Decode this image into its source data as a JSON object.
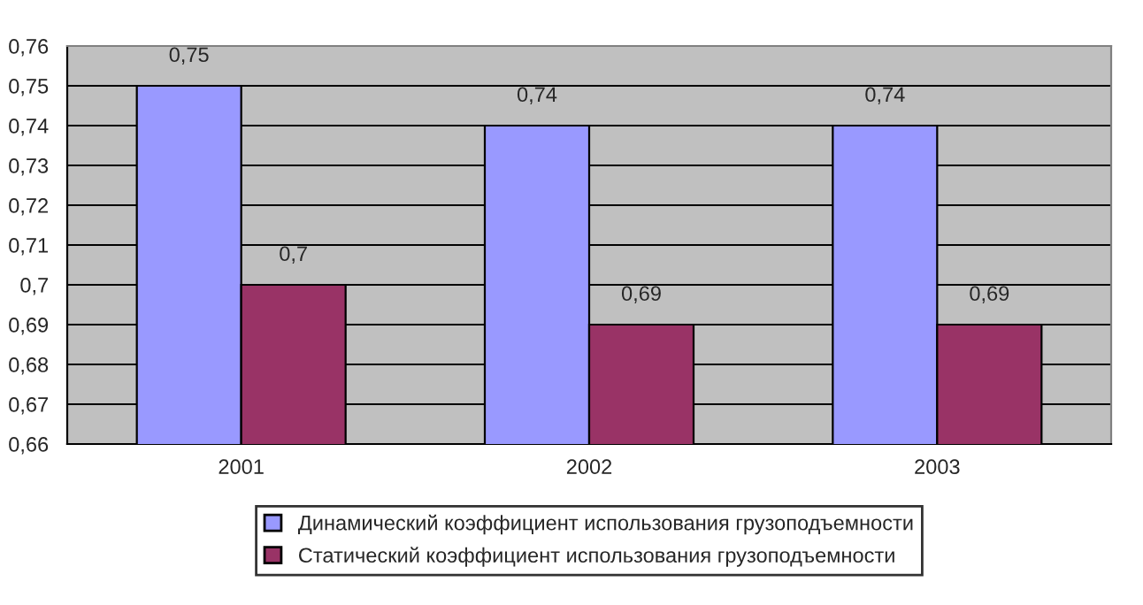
{
  "chart_data": {
    "type": "bar",
    "categories": [
      "2001",
      "2002",
      "2003"
    ],
    "series": [
      {
        "name": "Динамический коэффициент использования грузоподъемности",
        "color": "#9999ff",
        "values": [
          0.75,
          0.74,
          0.74
        ],
        "value_labels": [
          "0,75",
          "0,74",
          "0,74"
        ]
      },
      {
        "name": "Статический коэффициент использования грузоподъемности",
        "color": "#993366",
        "values": [
          0.7,
          0.69,
          0.69
        ],
        "value_labels": [
          "0,7",
          "0,69",
          "0,69"
        ]
      }
    ],
    "ylim": [
      0.66,
      0.76
    ],
    "yticks": [
      {
        "value": 0.66,
        "label": "0,66"
      },
      {
        "value": 0.67,
        "label": "0,67"
      },
      {
        "value": 0.68,
        "label": "0,68"
      },
      {
        "value": 0.69,
        "label": "0,69"
      },
      {
        "value": 0.7,
        "label": "0,7"
      },
      {
        "value": 0.71,
        "label": "0,71"
      },
      {
        "value": 0.72,
        "label": "0,72"
      },
      {
        "value": 0.73,
        "label": "0,73"
      },
      {
        "value": 0.74,
        "label": "0,74"
      },
      {
        "value": 0.75,
        "label": "0,75"
      },
      {
        "value": 0.76,
        "label": "0,76"
      }
    ],
    "grid": "y",
    "legend": "bottom"
  }
}
